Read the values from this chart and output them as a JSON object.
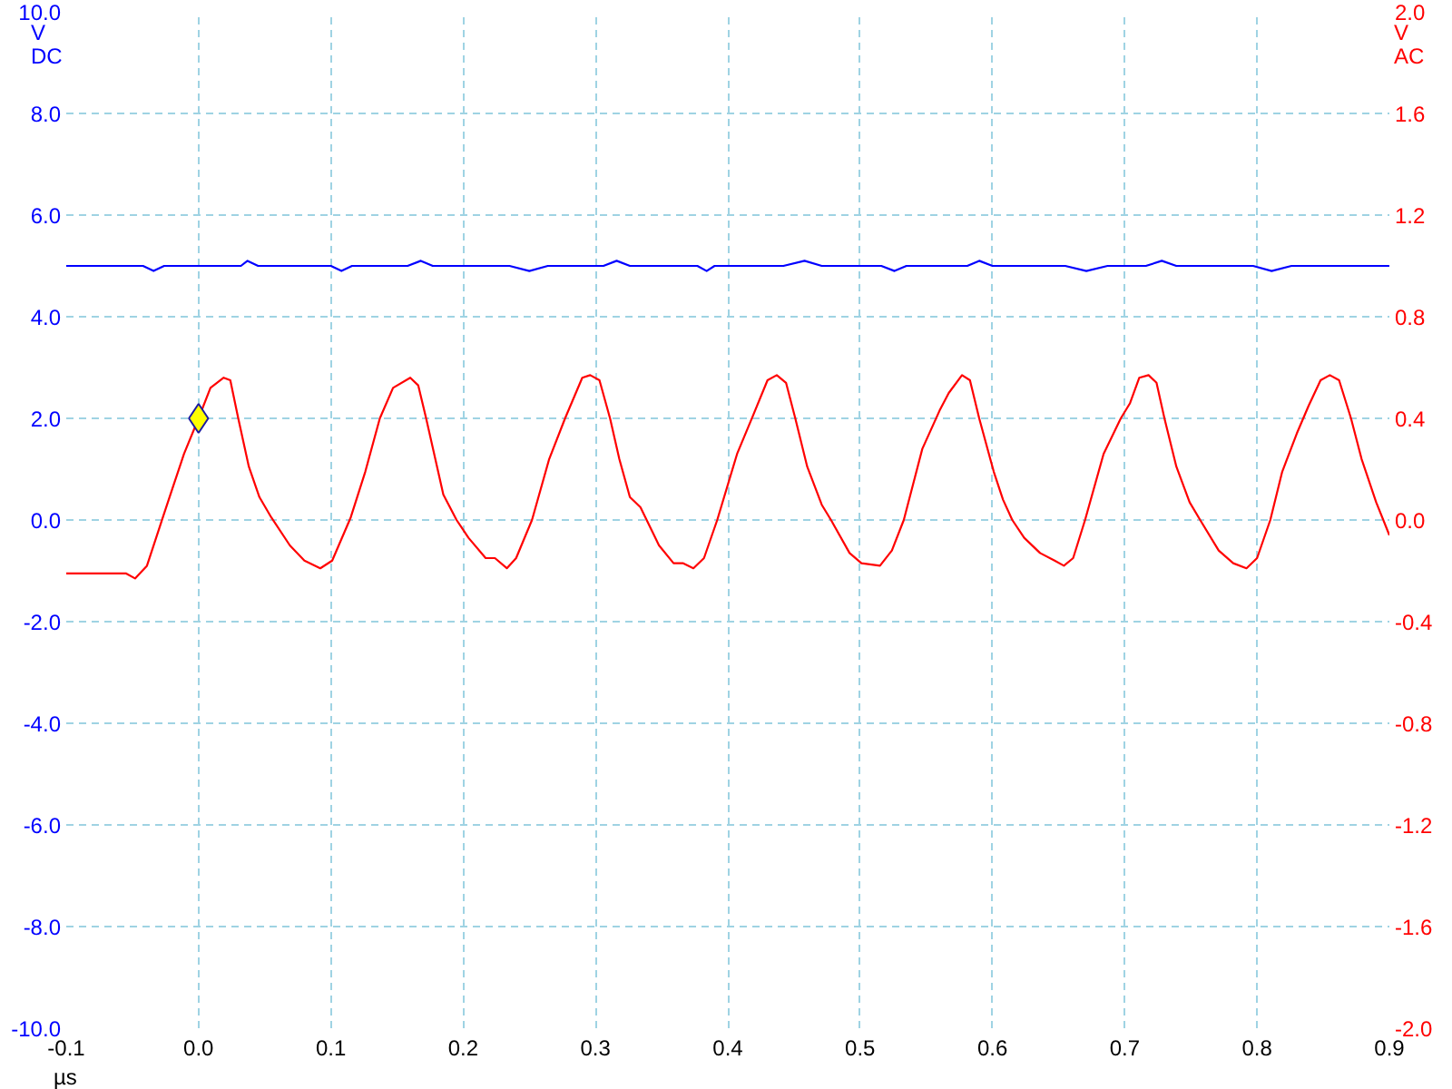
{
  "chart_data": {
    "type": "line",
    "xlabel": "µs",
    "ylabel": "V DC",
    "y2label": "V AC",
    "xlim": [
      -0.1,
      0.9
    ],
    "xticks": [
      -0.1,
      {
        "value": 0,
        "label": "0.0"
      },
      0.1,
      0.2,
      0.3,
      0.4,
      0.5,
      0.6,
      0.7,
      0.8,
      0.9
    ],
    "ylim": [
      -10,
      10
    ],
    "yticks": [
      {
        "value": -10,
        "label": "-10.0"
      },
      {
        "value": -8,
        "label": "-8.0"
      },
      {
        "value": -6,
        "label": "-6.0"
      },
      {
        "value": -4,
        "label": "-4.0"
      },
      {
        "value": -2,
        "label": "-2.0"
      },
      {
        "value": 0,
        "label": "0.0"
      },
      {
        "value": 2,
        "label": "2.0"
      },
      {
        "value": 4,
        "label": "4.0"
      },
      {
        "value": 6,
        "label": "6.0"
      },
      {
        "value": 8,
        "label": "8.0"
      },
      {
        "value": 10,
        "label": "10.0"
      }
    ],
    "y2lim": [
      -2,
      2
    ],
    "y2ticks": [
      {
        "value": -2,
        "label": "-2.0"
      },
      -1.6,
      -1.2,
      -0.8,
      -0.4,
      {
        "value": 0,
        "label": "0.0"
      },
      0.4,
      0.8,
      1.2,
      1.6,
      {
        "value": 2,
        "label": "2.0"
      }
    ],
    "grid": true,
    "series": [
      {
        "color": "#0000ff",
        "x": [
          -0.1,
          -0.042,
          -0.034,
          -0.026,
          0.032,
          0.037,
          0.045,
          0.1,
          0.108,
          0.116,
          0.158,
          0.168,
          0.177,
          0.235,
          0.25,
          0.264,
          0.306,
          0.316,
          0.326,
          0.377,
          0.384,
          0.39,
          0.442,
          0.458,
          0.471,
          0.516,
          0.526,
          0.535,
          0.581,
          0.59,
          0.6,
          0.655,
          0.671,
          0.687,
          0.716,
          0.728,
          0.739,
          0.797,
          0.811,
          0.826,
          0.9
        ],
        "values": [
          5.0,
          5.0,
          4.9,
          5.0,
          5.0,
          5.1,
          5.0,
          5.0,
          4.9,
          5.0,
          5.0,
          5.1,
          5.0,
          5.0,
          4.9,
          5.0,
          5.0,
          5.1,
          5.0,
          5.0,
          4.9,
          5.0,
          5.0,
          5.1,
          5.0,
          5.0,
          4.9,
          5.0,
          5.0,
          5.1,
          5.0,
          5.0,
          4.9,
          5.0,
          5.0,
          5.1,
          5.0,
          5.0,
          4.9,
          5.0,
          5.0
        ]
      },
      {
        "color": "#ff0000",
        "axis": "y2",
        "x": [
          -0.1,
          -0.055,
          -0.048,
          -0.039,
          -0.027,
          -0.02,
          -0.011,
          0.0,
          0.009,
          0.019,
          0.024,
          0.03,
          0.038,
          0.046,
          0.055,
          0.069,
          0.08,
          0.092,
          0.101,
          0.115,
          0.126,
          0.137,
          0.147,
          0.16,
          0.166,
          0.172,
          0.185,
          0.195,
          0.204,
          0.217,
          0.224,
          0.233,
          0.24,
          0.252,
          0.265,
          0.277,
          0.29,
          0.296,
          0.303,
          0.311,
          0.318,
          0.326,
          0.334,
          0.348,
          0.359,
          0.366,
          0.374,
          0.382,
          0.392,
          0.407,
          0.419,
          0.43,
          0.437,
          0.444,
          0.451,
          0.46,
          0.471,
          0.478,
          0.492,
          0.501,
          0.515,
          0.524,
          0.533,
          0.547,
          0.56,
          0.567,
          0.577,
          0.583,
          0.59,
          0.601,
          0.608,
          0.615,
          0.624,
          0.636,
          0.647,
          0.654,
          0.661,
          0.67,
          0.684,
          0.697,
          0.704,
          0.711,
          0.718,
          0.724,
          0.73,
          0.739,
          0.749,
          0.757,
          0.771,
          0.782,
          0.792,
          0.8,
          0.81,
          0.819,
          0.83,
          0.839,
          0.848,
          0.855,
          0.862,
          0.871,
          0.879,
          0.89,
          0.9
        ],
        "values": [
          -0.21,
          -0.21,
          -0.23,
          -0.18,
          0.01,
          0.12,
          0.26,
          0.4,
          0.52,
          0.56,
          0.55,
          0.4,
          0.21,
          0.09,
          0.01,
          -0.1,
          -0.16,
          -0.19,
          -0.16,
          0.01,
          0.19,
          0.4,
          0.52,
          0.56,
          0.53,
          0.4,
          0.1,
          0.0,
          -0.07,
          -0.15,
          -0.15,
          -0.19,
          -0.15,
          0.0,
          0.24,
          0.4,
          0.56,
          0.57,
          0.55,
          0.4,
          0.24,
          0.09,
          0.05,
          -0.1,
          -0.17,
          -0.17,
          -0.19,
          -0.15,
          0.0,
          0.26,
          0.41,
          0.55,
          0.57,
          0.54,
          0.4,
          0.21,
          0.06,
          0.0,
          -0.13,
          -0.17,
          -0.18,
          -0.12,
          0.0,
          0.28,
          0.43,
          0.5,
          0.57,
          0.55,
          0.4,
          0.19,
          0.08,
          0.0,
          -0.07,
          -0.13,
          -0.16,
          -0.18,
          -0.15,
          0.0,
          0.26,
          0.4,
          0.46,
          0.56,
          0.57,
          0.54,
          0.4,
          0.21,
          0.07,
          0.0,
          -0.12,
          -0.17,
          -0.19,
          -0.15,
          0.0,
          0.19,
          0.34,
          0.45,
          0.55,
          0.57,
          0.55,
          0.4,
          0.24,
          0.07,
          -0.06
        ]
      },
      {
        "type": "scatter",
        "marker": "diamond",
        "color": "#ffff00",
        "x": [
          0.0
        ],
        "values": [
          2.0
        ]
      }
    ]
  }
}
